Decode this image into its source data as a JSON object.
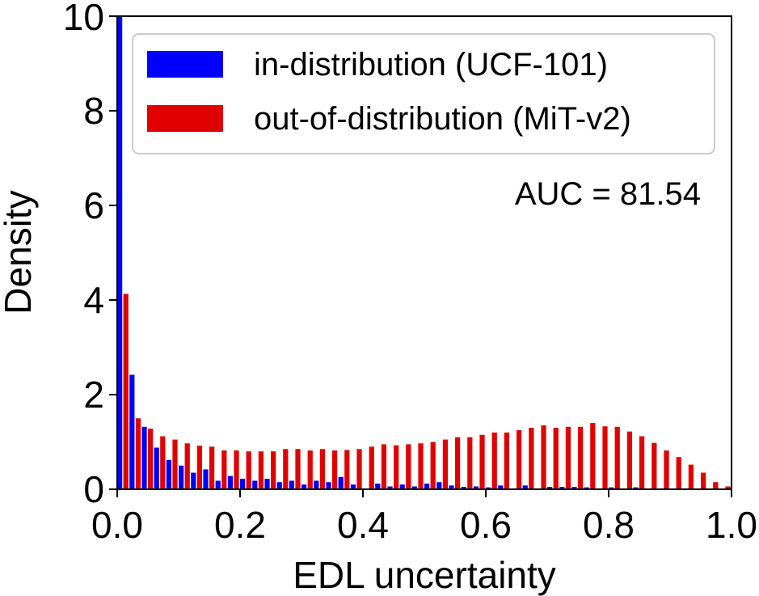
{
  "chart_data": {
    "type": "bar",
    "title": "",
    "xlabel": "EDL uncertainty",
    "ylabel": "Density",
    "xlim": [
      0.0,
      1.0
    ],
    "ylim": [
      0,
      10
    ],
    "xticks": [
      "0.0",
      "0.2",
      "0.4",
      "0.6",
      "0.8",
      "1.0"
    ],
    "yticks": [
      "0",
      "2",
      "4",
      "6",
      "8",
      "10"
    ],
    "grid": false,
    "legend_position": "top-right",
    "annotation": "AUC = 81.54",
    "bin_width": 0.02,
    "bin_starts": [
      0.0,
      0.02,
      0.04,
      0.06,
      0.08,
      0.1,
      0.12,
      0.14,
      0.16,
      0.18,
      0.2,
      0.22,
      0.24,
      0.26,
      0.28,
      0.3,
      0.32,
      0.34,
      0.36,
      0.38,
      0.4,
      0.42,
      0.44,
      0.46,
      0.48,
      0.5,
      0.52,
      0.54,
      0.56,
      0.58,
      0.6,
      0.62,
      0.64,
      0.66,
      0.68,
      0.7,
      0.72,
      0.74,
      0.76,
      0.78,
      0.8,
      0.82,
      0.84,
      0.86,
      0.88,
      0.9,
      0.92,
      0.94,
      0.96,
      0.98
    ],
    "series": [
      {
        "name": "in-distribution (UCF-101)",
        "color": "#0000ff",
        "values": [
          10.0,
          2.42,
          1.32,
          0.88,
          0.62,
          0.5,
          0.35,
          0.42,
          0.18,
          0.28,
          0.22,
          0.18,
          0.22,
          0.15,
          0.18,
          0.1,
          0.18,
          0.15,
          0.26,
          0.1,
          0.0,
          0.12,
          0.06,
          0.1,
          0.06,
          0.12,
          0.15,
          0.08,
          0.05,
          0.06,
          0.04,
          0.08,
          0.0,
          0.08,
          0.0,
          0.05,
          0.05,
          0.05,
          0.04,
          0.0,
          0.04,
          0.0,
          0.04,
          0.0,
          0.0,
          0.0,
          0.0,
          0.0,
          0.0,
          0.0
        ]
      },
      {
        "name": "out-of-distribution (MiT-v2)",
        "color": "#e00000",
        "values": [
          4.13,
          1.5,
          1.28,
          1.12,
          1.05,
          0.97,
          0.92,
          0.9,
          0.82,
          0.82,
          0.8,
          0.8,
          0.8,
          0.85,
          0.85,
          0.82,
          0.85,
          0.82,
          0.83,
          0.85,
          0.9,
          0.95,
          0.93,
          0.95,
          0.97,
          1.0,
          1.05,
          1.1,
          1.1,
          1.15,
          1.2,
          1.2,
          1.25,
          1.3,
          1.35,
          1.3,
          1.32,
          1.32,
          1.4,
          1.33,
          1.32,
          1.22,
          1.12,
          0.98,
          0.82,
          0.68,
          0.52,
          0.35,
          0.15,
          0.06
        ]
      }
    ]
  }
}
